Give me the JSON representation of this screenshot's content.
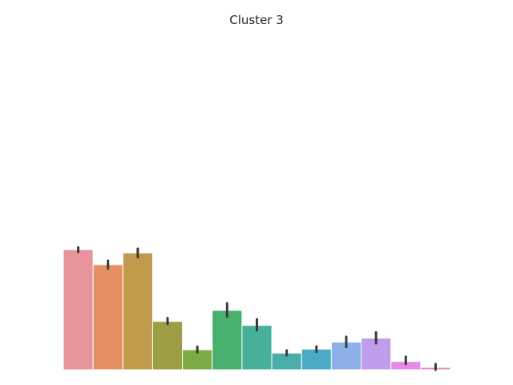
{
  "chart_data": {
    "type": "bar",
    "title": "Cluster 3",
    "xlabel": "",
    "ylabel": "",
    "grid": false,
    "legend": "none",
    "ylim": [
      0,
      1
    ],
    "values": [
      0.36,
      0.315,
      0.35,
      0.145,
      0.06,
      0.178,
      0.133,
      0.05,
      0.062,
      0.083,
      0.095,
      0.025,
      0.007
    ],
    "errors": [
      [
        0.353,
        0.367
      ],
      [
        0.303,
        0.327
      ],
      [
        0.337,
        0.363
      ],
      [
        0.137,
        0.155
      ],
      [
        0.052,
        0.069
      ],
      [
        0.159,
        0.199
      ],
      [
        0.118,
        0.151
      ],
      [
        0.043,
        0.058
      ],
      [
        0.054,
        0.07
      ],
      [
        0.068,
        0.099
      ],
      [
        0.079,
        0.112
      ],
      [
        0.017,
        0.039
      ],
      [
        0.0,
        0.017
      ]
    ],
    "colors": [
      "#e8949d",
      "#e49062",
      "#c09b4c",
      "#9d9e43",
      "#7bab43",
      "#48b06f",
      "#47b09a",
      "#49ada9",
      "#4aaac8",
      "#8eb0e8",
      "#bf9deb",
      "#e58be8",
      "#e88cc0"
    ]
  }
}
